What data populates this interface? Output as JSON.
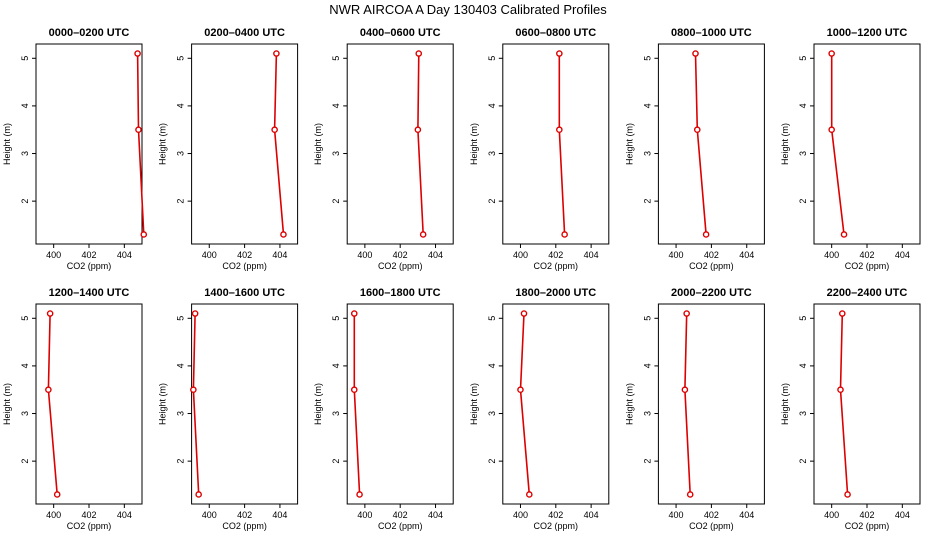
{
  "figure_title": "NWR AIRCOA A  Day 130403  Calibrated Profiles",
  "colors": {
    "line": "#dd0000",
    "marker": "#dd0000",
    "axis": "#000000"
  },
  "chart_data": {
    "type": "line",
    "xlabel": "CO2 (ppm)",
    "ylabel": "Height (m)",
    "xlim": [
      399,
      405
    ],
    "ylim": [
      1.1,
      5.3
    ],
    "x_ticks": [
      400,
      402,
      404
    ],
    "y_ticks": [
      2,
      3,
      4,
      5
    ],
    "heights": [
      1.3,
      3.5,
      5.1
    ],
    "panels": [
      {
        "title": "0000–0200 UTC",
        "co2": [
          405.1,
          404.8,
          404.75
        ]
      },
      {
        "title": "0200–0400 UTC",
        "co2": [
          404.2,
          403.7,
          403.8
        ]
      },
      {
        "title": "0400–0600 UTC",
        "co2": [
          403.3,
          403.0,
          403.05
        ]
      },
      {
        "title": "0600–0800 UTC",
        "co2": [
          402.5,
          402.2,
          402.2
        ]
      },
      {
        "title": "0800–1000 UTC",
        "co2": [
          401.7,
          401.2,
          401.1
        ]
      },
      {
        "title": "1000–1200 UTC",
        "co2": [
          400.7,
          400.0,
          400.0
        ]
      },
      {
        "title": "1200–1400 UTC",
        "co2": [
          400.2,
          399.7,
          399.8
        ]
      },
      {
        "title": "1400–1600 UTC",
        "co2": [
          399.4,
          399.1,
          399.2
        ]
      },
      {
        "title": "1600–1800 UTC",
        "co2": [
          399.7,
          399.4,
          399.4
        ]
      },
      {
        "title": "1800–2000 UTC",
        "co2": [
          400.5,
          400.0,
          400.2
        ]
      },
      {
        "title": "2000–2200 UTC",
        "co2": [
          400.8,
          400.5,
          400.6
        ]
      },
      {
        "title": "2200–2400 UTC",
        "co2": [
          400.9,
          400.5,
          400.6
        ]
      }
    ]
  }
}
